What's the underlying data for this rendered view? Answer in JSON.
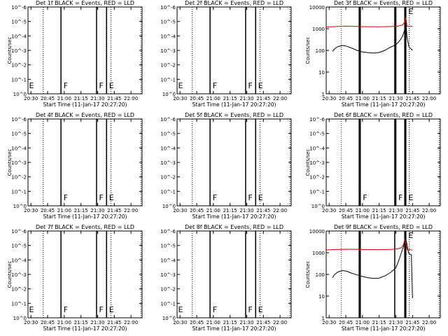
{
  "figure": {
    "background": "#ffffff",
    "axis_color": "#000000",
    "events_color": "#000000",
    "lld_color": "#e00000"
  },
  "chart_data": [
    {
      "type": "line",
      "title": "Det 1f BLACK = Events, RED = LLD",
      "xlabel": "Start Time (11-Jan-17 20:27:20)",
      "ylabel": "Counts/sec",
      "yscale": "log",
      "ylim": [
        1,
        1e-07
      ],
      "yticks": [
        "10^0",
        "10^-1",
        "10^-2",
        "10^-3",
        "10^-4",
        "10^-5",
        "10^-6"
      ],
      "xrange": [
        "20:27:20",
        "22:10:00"
      ],
      "xticks": [
        "20:30",
        "20:45",
        "21:00",
        "21:15",
        "21:30",
        "21:45",
        "22:00"
      ],
      "dotted_vlines": [
        "20:41",
        "21:38",
        "21:42",
        "22:09"
      ],
      "solid_vlines": [
        "20:57",
        "21:29",
        "21:38"
      ],
      "flags": [
        {
          "label": "E",
          "time": "20:27"
        },
        {
          "label": "F",
          "time": "20:58"
        },
        {
          "label": "F",
          "time": "21:30"
        },
        {
          "label": "E",
          "time": "21:39"
        }
      ],
      "series": []
    },
    {
      "type": "line",
      "title": "Det 2f BLACK = Events, RED = LLD",
      "xlabel": "Start Time (11-Jan-17 20:27:20)",
      "ylabel": "",
      "yscale": "log",
      "ylim": [
        1,
        1e-07
      ],
      "yticks": [
        "10^0",
        "10^-1",
        "10^-2",
        "10^-3",
        "10^-4",
        "10^-5",
        "10^-6"
      ],
      "xrange": [
        "20:27:20",
        "22:10:00"
      ],
      "xticks": [
        "20:30",
        "20:45",
        "21:00",
        "21:15",
        "21:30",
        "21:45",
        "22:00"
      ],
      "dotted_vlines": [
        "20:41",
        "21:38",
        "21:42",
        "22:09"
      ],
      "solid_vlines": [
        "20:57",
        "21:29",
        "21:38"
      ],
      "flags": [
        {
          "label": "E",
          "time": "20:27"
        },
        {
          "label": "F",
          "time": "20:58"
        },
        {
          "label": "F",
          "time": "21:30"
        },
        {
          "label": "E",
          "time": "21:39"
        }
      ],
      "series": []
    },
    {
      "type": "line",
      "title": "Det 3f BLACK = Events, RED = LLD",
      "xlabel": "Start Time (11-Jan-17 20:27:20)",
      "ylabel": "Counts/sec",
      "yscale": "log",
      "ylim": [
        1,
        10000
      ],
      "yticks": [
        "1",
        "10",
        "100",
        "1000",
        "10000"
      ],
      "xrange": [
        "20:27:20",
        "22:10:00"
      ],
      "xticks": [
        "20:30",
        "20:45",
        "21:00",
        "21:15",
        "21:30",
        "21:45",
        "22:00"
      ],
      "dotted_vlines": [
        "20:41",
        "21:38",
        "21:42",
        "22:09"
      ],
      "solid_vlines": [
        "20:57",
        "20:58",
        "21:29",
        "21:30",
        "21:38",
        "21:39"
      ],
      "flags": [
        {
          "label": "E",
          "time": "21:40"
        }
      ],
      "series": [
        {
          "color": "#000000",
          "points": [
            [
              "20:33",
              90
            ],
            [
              "20:35",
              120
            ],
            [
              "20:38",
              150
            ],
            [
              "20:42",
              170
            ],
            [
              "20:45",
              160
            ],
            [
              "20:50",
              130
            ],
            [
              "20:55",
              100
            ],
            [
              "21:00",
              85
            ],
            [
              "21:05",
              78
            ],
            [
              "21:10",
              75
            ],
            [
              "21:15",
              80
            ],
            [
              "21:20",
              100
            ],
            [
              "21:25",
              140
            ],
            [
              "21:30",
              180
            ],
            [
              "21:34",
              300
            ],
            [
              "21:36",
              450
            ],
            [
              "21:38",
              900
            ],
            [
              "21:39",
              2500
            ],
            [
              "21:40",
              400
            ],
            [
              "21:42",
              140
            ],
            [
              "21:45",
              100
            ]
          ]
        },
        {
          "color": "#e00000",
          "points": [
            [
              "20:27",
              1200
            ],
            [
              "20:35",
              1250
            ],
            [
              "20:45",
              1320
            ],
            [
              "20:55",
              1280
            ],
            [
              "21:05",
              1240
            ],
            [
              "21:15",
              1230
            ],
            [
              "21:25",
              1260
            ],
            [
              "21:32",
              1320
            ],
            [
              "21:36",
              1500
            ],
            [
              "21:38",
              2000
            ],
            [
              "21:39",
              3300
            ],
            [
              "21:40",
              1300
            ],
            [
              "21:45",
              1280
            ]
          ]
        }
      ]
    },
    {
      "type": "line",
      "title": "Det 4f BLACK = Events, RED = LLD",
      "xlabel": "Start Time (11-Jan-17 20:27:20)",
      "ylabel": "Counts/sec",
      "yscale": "log",
      "ylim": [
        1,
        1e-07
      ],
      "yticks": [
        "10^0",
        "10^-1",
        "10^-2",
        "10^-3",
        "10^-4",
        "10^-5",
        "10^-6"
      ],
      "xrange": [
        "20:27:20",
        "22:10:00"
      ],
      "xticks": [
        "20:30",
        "20:45",
        "21:00",
        "21:15",
        "21:30",
        "21:45",
        "22:00"
      ],
      "dotted_vlines": [
        "20:41",
        "21:38",
        "21:42",
        "22:09"
      ],
      "solid_vlines": [
        "20:57",
        "21:29",
        "21:38"
      ],
      "flags": [
        {
          "label": "F",
          "time": "20:58"
        },
        {
          "label": "F",
          "time": "21:30"
        },
        {
          "label": "E",
          "time": "21:39"
        }
      ],
      "series": []
    },
    {
      "type": "line",
      "title": "Det 5f BLACK = Events, RED = LLD",
      "xlabel": "Start Time (11-Jan-17 20:27:20)",
      "ylabel": "",
      "yscale": "log",
      "ylim": [
        1,
        1e-07
      ],
      "yticks": [
        "10^0",
        "10^-1",
        "10^-2",
        "10^-3",
        "10^-4",
        "10^-5",
        "10^-6"
      ],
      "xrange": [
        "20:27:20",
        "22:10:00"
      ],
      "xticks": [
        "20:30",
        "20:45",
        "21:00",
        "21:15",
        "21:30",
        "21:45",
        "22:00"
      ],
      "dotted_vlines": [
        "20:41",
        "21:38",
        "21:42",
        "22:09"
      ],
      "solid_vlines": [
        "20:57",
        "21:29",
        "21:38"
      ],
      "flags": [
        {
          "label": "F",
          "time": "20:58"
        },
        {
          "label": "F",
          "time": "21:30"
        },
        {
          "label": "E",
          "time": "21:39"
        }
      ],
      "series": []
    },
    {
      "type": "line",
      "title": "Det 6f BLACK = Events, RED = LLD",
      "xlabel": "Start Time (11-Jan-17 20:27:20)",
      "ylabel": "Counts/sec",
      "yscale": "log",
      "ylim": [
        1,
        1e-07
      ],
      "yticks": [
        "10^0",
        "10^-1",
        "10^-2",
        "10^-3",
        "10^-4",
        "10^-5",
        "10^-6"
      ],
      "xrange": [
        "20:27:20",
        "22:10:00"
      ],
      "xticks": [
        "20:30",
        "20:45",
        "21:00",
        "21:15",
        "21:30",
        "21:45",
        "22:00"
      ],
      "dotted_vlines": [
        "20:41",
        "21:38",
        "21:42",
        "22:09"
      ],
      "solid_vlines": [
        "20:57",
        "20:58",
        "21:29",
        "21:30",
        "21:38",
        "21:39"
      ],
      "flags": [
        {
          "label": "F",
          "time": "20:59"
        },
        {
          "label": "F",
          "time": "21:31"
        },
        {
          "label": "E",
          "time": "21:40"
        }
      ],
      "series": []
    },
    {
      "type": "line",
      "title": "Det 7f BLACK = Events, RED = LLD",
      "xlabel": "Start Time (11-Jan-17 20:27:20)",
      "ylabel": "Counts/sec",
      "yscale": "log",
      "ylim": [
        1,
        1e-07
      ],
      "yticks": [
        "10^0",
        "10^-1",
        "10^-2",
        "10^-3",
        "10^-4",
        "10^-5",
        "10^-6"
      ],
      "xrange": [
        "20:27:20",
        "22:10:00"
      ],
      "xticks": [
        "20:30",
        "20:45",
        "21:00",
        "21:15",
        "21:30",
        "21:45",
        "22:00"
      ],
      "dotted_vlines": [
        "20:41",
        "21:38",
        "21:42",
        "22:09"
      ],
      "solid_vlines": [
        "20:57",
        "21:29",
        "21:38"
      ],
      "flags": [
        {
          "label": "E",
          "time": "20:27"
        },
        {
          "label": "F",
          "time": "20:58"
        },
        {
          "label": "F",
          "time": "21:30"
        },
        {
          "label": "E",
          "time": "21:39"
        }
      ],
      "series": []
    },
    {
      "type": "line",
      "title": "Det 8f BLACK = Events, RED = LLD",
      "xlabel": "Start Time (11-Jan-17 20:27:20)",
      "ylabel": "",
      "yscale": "log",
      "ylim": [
        1,
        1e-07
      ],
      "yticks": [
        "10^0",
        "10^-1",
        "10^-2",
        "10^-3",
        "10^-4",
        "10^-5",
        "10^-6"
      ],
      "xrange": [
        "20:27:20",
        "22:10:00"
      ],
      "xticks": [
        "20:30",
        "20:45",
        "21:00",
        "21:15",
        "21:30",
        "21:45",
        "22:00"
      ],
      "dotted_vlines": [
        "20:41",
        "21:38",
        "21:42",
        "22:09"
      ],
      "solid_vlines": [
        "20:57",
        "21:29",
        "21:38"
      ],
      "flags": [
        {
          "label": "E",
          "time": "20:27"
        },
        {
          "label": "F",
          "time": "20:58"
        },
        {
          "label": "F",
          "time": "21:30"
        },
        {
          "label": "E",
          "time": "21:39"
        }
      ],
      "series": []
    },
    {
      "type": "line",
      "title": "Det 9f BLACK = Events, RED = LLD",
      "xlabel": "Start Time (11-Jan-17 20:27:20)",
      "ylabel": "Counts/sec",
      "yscale": "log",
      "ylim": [
        1,
        10000
      ],
      "yticks": [
        "1",
        "10",
        "100",
        "1000",
        "10000"
      ],
      "xrange": [
        "20:27:20",
        "22:10:00"
      ],
      "xticks": [
        "20:30",
        "20:45",
        "21:00",
        "21:15",
        "21:30",
        "21:45",
        "22:00"
      ],
      "dotted_vlines": [
        "20:41",
        "21:38",
        "21:42",
        "22:09"
      ],
      "solid_vlines": [
        "20:57",
        "20:58",
        "21:29",
        "21:38",
        "21:39"
      ],
      "flags": [
        {
          "label": "E",
          "time": "21:40"
        }
      ],
      "series": [
        {
          "color": "#000000",
          "points": [
            [
              "20:33",
              70
            ],
            [
              "20:35",
              100
            ],
            [
              "20:38",
              130
            ],
            [
              "20:42",
              150
            ],
            [
              "20:46",
              140
            ],
            [
              "20:50",
              115
            ],
            [
              "20:55",
              95
            ],
            [
              "21:00",
              80
            ],
            [
              "21:05",
              70
            ],
            [
              "21:10",
              65
            ],
            [
              "21:15",
              68
            ],
            [
              "21:20",
              85
            ],
            [
              "21:25",
              120
            ],
            [
              "21:30",
              200
            ],
            [
              "21:33",
              500
            ],
            [
              "21:35",
              1000
            ],
            [
              "21:37",
              2000
            ],
            [
              "21:38",
              3500
            ],
            [
              "21:39",
              4000
            ],
            [
              "21:40",
              2500
            ],
            [
              "21:41",
              1200
            ],
            [
              "21:42",
              900
            ],
            [
              "21:44",
              800
            ],
            [
              "21:45",
              8
            ]
          ]
        },
        {
          "color": "#e00000",
          "points": [
            [
              "20:27",
              1350
            ],
            [
              "20:35",
              1400
            ],
            [
              "20:45",
              1450
            ],
            [
              "20:55",
              1420
            ],
            [
              "21:05",
              1400
            ],
            [
              "21:15",
              1390
            ],
            [
              "21:25",
              1420
            ],
            [
              "21:32",
              1500
            ],
            [
              "21:35",
              1700
            ],
            [
              "21:37",
              2500
            ],
            [
              "21:38",
              4000
            ],
            [
              "21:39",
              3000
            ],
            [
              "21:40",
              1400
            ],
            [
              "21:45",
              1350
            ]
          ]
        }
      ]
    }
  ]
}
